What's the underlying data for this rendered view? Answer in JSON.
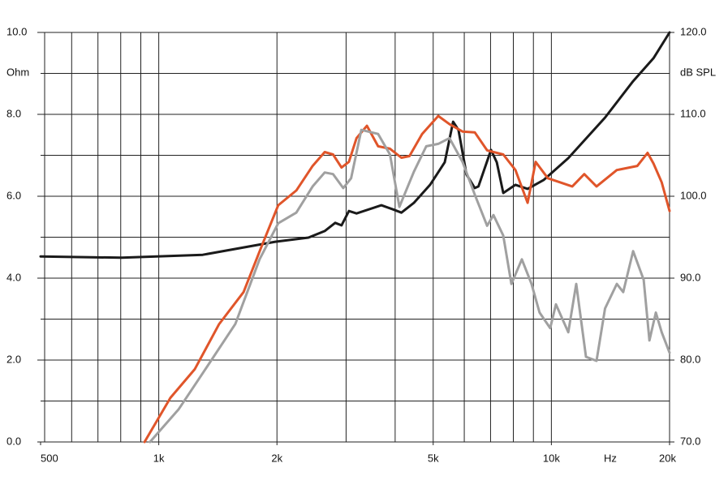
{
  "chart_data": {
    "type": "line",
    "ylabel": "Ohm",
    "y2label": "dB SPL",
    "xlabel": "Hz",
    "xscale": "log",
    "xlim": [
      500,
      20000
    ],
    "ylim": [
      0,
      10
    ],
    "y2lim": [
      70,
      120
    ],
    "xticks": [
      {
        "value": 500,
        "label": "500"
      },
      {
        "value": 1000,
        "label": "1k"
      },
      {
        "value": 2000,
        "label": "2k"
      },
      {
        "value": 5000,
        "label": "5k"
      },
      {
        "value": 10000,
        "label": "10k"
      },
      {
        "value": 20000,
        "label": "20k"
      }
    ],
    "xgrid": [
      600,
      700,
      800,
      900,
      1000,
      2000,
      3000,
      4000,
      5000,
      6000,
      7000,
      8000,
      9000,
      10000,
      20000
    ],
    "xgrid_bold": 900,
    "yticks": [
      {
        "value": 0,
        "label": "0.0"
      },
      {
        "value": 2,
        "label": "2.0"
      },
      {
        "value": 4,
        "label": "4.0"
      },
      {
        "value": 6,
        "label": "6.0"
      },
      {
        "value": 8,
        "label": "8.0"
      },
      {
        "value": 10,
        "label": "10.0"
      }
    ],
    "ygrid": [
      1,
      2,
      3,
      4,
      5,
      6,
      7,
      8,
      9,
      10
    ],
    "y2ticks": [
      {
        "value": 70,
        "label": "70.0"
      },
      {
        "value": 80,
        "label": "80.0"
      },
      {
        "value": 90,
        "label": "90.0"
      },
      {
        "value": 100,
        "label": "100.0"
      },
      {
        "value": 110,
        "label": "110.0"
      },
      {
        "value": 120,
        "label": "120.0"
      }
    ],
    "series": [
      {
        "color": "#1a1a1a",
        "axis": "y",
        "x": [
          500,
          805,
          1294,
          1981,
          2405,
          2647,
          2814,
          2920,
          3050,
          3190,
          3690,
          3950,
          4150,
          4465,
          4910,
          5350,
          5620,
          5800,
          6080,
          6380,
          6520,
          7020,
          7260,
          7540,
          8100,
          8700,
          9570,
          11040,
          13700,
          16150,
          18200,
          20000
        ],
        "values": [
          4.53,
          4.5,
          4.57,
          4.89,
          4.99,
          5.15,
          5.35,
          5.29,
          5.64,
          5.58,
          5.78,
          5.68,
          5.6,
          5.84,
          6.28,
          6.83,
          7.82,
          7.62,
          6.53,
          6.2,
          6.24,
          7.13,
          6.83,
          6.08,
          6.28,
          6.18,
          6.4,
          6.93,
          7.92,
          8.81,
          9.37,
          10
        ]
      },
      {
        "color": "#e0552a",
        "axis": "y2",
        "x": [
          920,
          1071,
          1236,
          1425,
          1644,
          1825,
          2015,
          2240,
          2465,
          2647,
          2780,
          2920,
          3050,
          3190,
          3390,
          3620,
          3880,
          4150,
          4350,
          4685,
          5150,
          5500,
          5940,
          6380,
          6860,
          7540,
          8100,
          8700,
          9120,
          9800,
          10520,
          11300,
          12130,
          13030,
          14680,
          16560,
          17580,
          18200,
          19100,
          20000
        ],
        "values": [
          70,
          75.4,
          78.9,
          84.4,
          88.3,
          93.8,
          98.9,
          100.7,
          103.7,
          105.4,
          105.1,
          103.5,
          104.2,
          107.1,
          108.6,
          106.1,
          105.8,
          104.7,
          104.9,
          107.6,
          109.8,
          108.8,
          107.9,
          107.8,
          105.6,
          105.1,
          103.2,
          99.2,
          104.2,
          102.2,
          101.7,
          101.2,
          102.7,
          101.2,
          103.2,
          103.7,
          105.3,
          104.0,
          101.7,
          98.2
        ]
      },
      {
        "color": "#a0a0a0",
        "axis": "y2",
        "x": [
          950,
          1124,
          1294,
          1566,
          1806,
          2015,
          2240,
          2465,
          2647,
          2780,
          2950,
          3090,
          3280,
          3620,
          3880,
          4100,
          4465,
          4800,
          5150,
          5500,
          5940,
          6380,
          6860,
          7120,
          7540,
          7910,
          8410,
          8900,
          9330,
          9930,
          10270,
          11040,
          11570,
          12250,
          13030,
          13700,
          14680,
          15240,
          16150,
          17180,
          17770,
          18450,
          19100,
          20000
        ],
        "values": [
          70,
          74,
          78.4,
          84.4,
          92.3,
          96.7,
          98,
          101.2,
          102.9,
          102.7,
          101,
          102.2,
          108.1,
          107.6,
          105.1,
          98.7,
          103,
          106.1,
          106.4,
          107.1,
          104.2,
          100.2,
          96.4,
          97.7,
          95.2,
          89.3,
          92.3,
          89.3,
          85.8,
          83.9,
          86.8,
          83.4,
          89.3,
          80.4,
          79.9,
          86.3,
          89.3,
          88.3,
          93.3,
          89.8,
          82.4,
          85.8,
          83.4,
          80.9
        ]
      }
    ]
  }
}
